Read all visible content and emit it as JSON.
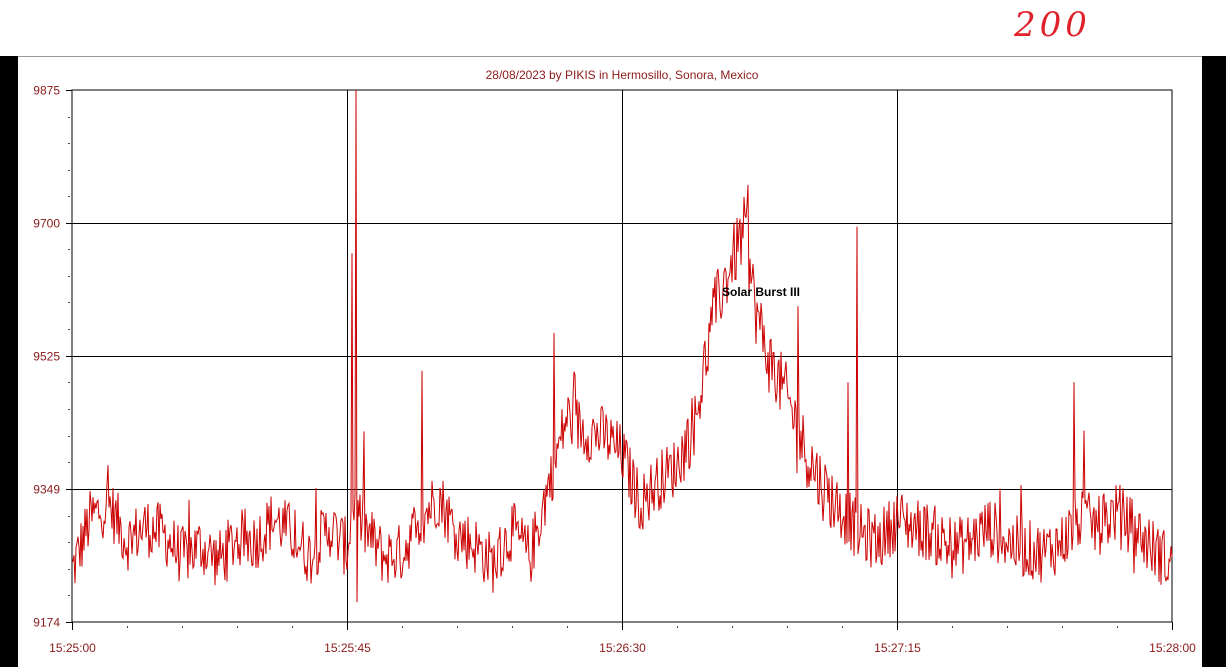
{
  "annotation": {
    "handwritten_text": "200",
    "color": "#e0202a"
  },
  "colors": {
    "series": "#cc0000",
    "text": "#8b1a1a",
    "grid": "#000000",
    "background": "#ffffff",
    "frame": "#000000"
  },
  "chart_data": {
    "type": "line",
    "title": "28/08/2023  by  PIKIS  in  Hermosillo, Sonora, Mexico",
    "xlabel": "",
    "ylabel": "",
    "x_range": [
      "15:25:00",
      "15:28:00"
    ],
    "ylim": [
      9174,
      9875
    ],
    "y_ticks": [
      "9875",
      "9700",
      "9525",
      "9349",
      "9174"
    ],
    "x_ticks": [
      "15:25:00",
      "15:25:45",
      "15:26:30",
      "15:27:15",
      "15:28:00"
    ],
    "grid": true,
    "annotations": [
      {
        "text": "Solar Burst III",
        "x": "15:26:47",
        "y": 9613
      }
    ],
    "series": [
      {
        "color": "#cc0000",
        "x_seconds_after_15_25_00": [
          0,
          3,
          6,
          9,
          12,
          15,
          18,
          21,
          24,
          27,
          30,
          33,
          36,
          39,
          42,
          45,
          46,
          48,
          51,
          54,
          57,
          60,
          63,
          66,
          69,
          72,
          75,
          78,
          81,
          84,
          87,
          90,
          93,
          96,
          99,
          102,
          105,
          108,
          110,
          112,
          114,
          117,
          120,
          123,
          126,
          129,
          132,
          135,
          138,
          141,
          144,
          147,
          150,
          153,
          156,
          159,
          162,
          165,
          168,
          171,
          174,
          177,
          180
        ],
        "values": [
          9240,
          9310,
          9330,
          9280,
          9300,
          9290,
          9260,
          9275,
          9255,
          9285,
          9280,
          9310,
          9290,
          9260,
          9300,
          9270,
          9330,
          9295,
          9260,
          9265,
          9310,
          9340,
          9290,
          9275,
          9250,
          9295,
          9260,
          9355,
          9445,
          9425,
          9420,
          9395,
          9330,
          9360,
          9380,
          9440,
          9580,
          9650,
          9690,
          9580,
          9520,
          9470,
          9400,
          9350,
          9320,
          9290,
          9280,
          9310,
          9300,
          9290,
          9270,
          9280,
          9300,
          9280,
          9270,
          9265,
          9280,
          9310,
          9300,
          9320,
          9295,
          9270,
          9250
        ]
      }
    ]
  }
}
